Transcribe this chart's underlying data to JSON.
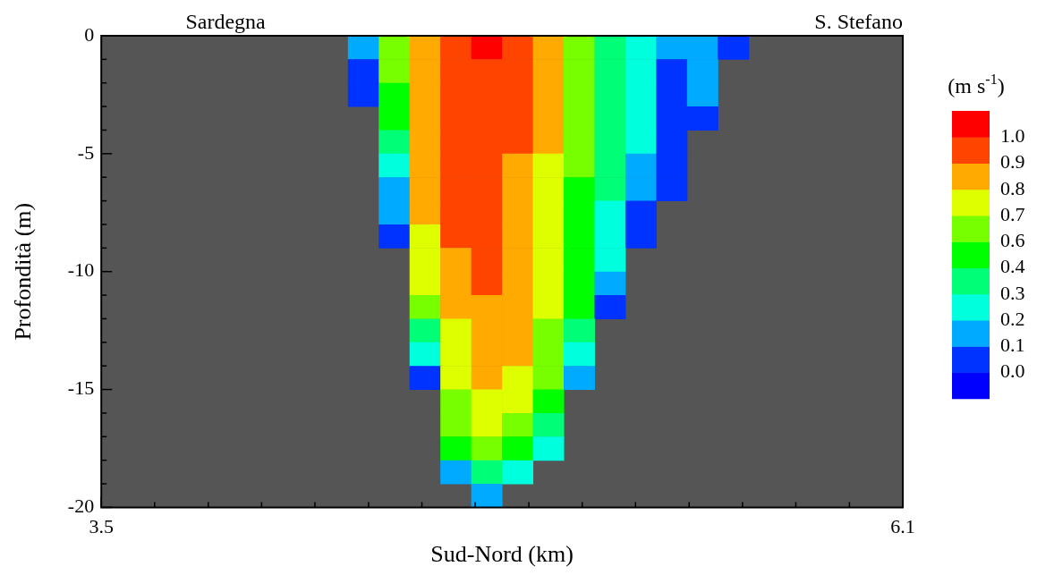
{
  "chart_data": {
    "type": "heatmap",
    "xlabel": "Sud-Nord (km)",
    "ylabel": "Profondità (m)",
    "clabel": "(m s$^{-1}$)",
    "annotations": [
      "Sardegna",
      "S. Stefano"
    ],
    "xlim": [
      3.5,
      6.1
    ],
    "xticks": [
      3.5,
      {
        "value": 3.673,
        "label": null
      },
      {
        "value": 3.847,
        "label": null
      },
      {
        "value": 4.02,
        "label": null
      },
      {
        "value": 4.193,
        "label": null
      },
      {
        "value": 4.367,
        "label": null
      },
      {
        "value": 4.54,
        "label": null
      },
      {
        "value": 4.713,
        "label": null
      },
      {
        "value": 4.887,
        "label": null
      },
      {
        "value": 5.06,
        "label": null
      },
      {
        "value": 5.233,
        "label": null
      },
      {
        "value": 5.407,
        "label": null
      },
      {
        "value": 5.58,
        "label": null
      },
      {
        "value": 5.753,
        "label": null
      },
      {
        "value": 5.927,
        "label": null
      },
      6.1
    ],
    "ylim": [
      -20,
      0
    ],
    "yticks": [
      -20,
      {
        "value": -19,
        "label": null
      },
      {
        "value": -18,
        "label": null
      },
      {
        "value": -17,
        "label": null
      },
      {
        "value": -16,
        "label": null
      },
      -15,
      {
        "value": -14,
        "label": null
      },
      {
        "value": -13,
        "label": null
      },
      {
        "value": -12,
        "label": null
      },
      {
        "value": -11,
        "label": null
      },
      -10,
      {
        "value": -9,
        "label": null
      },
      {
        "value": -8,
        "label": null
      },
      {
        "value": -7,
        "label": null
      },
      {
        "value": -6,
        "label": null
      },
      -5,
      {
        "value": -4,
        "label": null
      },
      {
        "value": -3,
        "label": null
      },
      {
        "value": -2,
        "label": null
      },
      {
        "value": -1,
        "label": null
      },
      0
    ],
    "clim": [
      -0.11,
      1.1
    ],
    "cticks": [
      {
        "value": 0,
        "label": "0.0"
      },
      {
        "value": 0.11,
        "label": "0.1"
      },
      {
        "value": 0.22,
        "label": "0.2"
      },
      {
        "value": 0.33,
        "label": "0.3"
      },
      {
        "value": 0.44,
        "label": "0.4"
      },
      {
        "value": 0.55,
        "label": "0.6"
      },
      {
        "value": 0.66,
        "label": "0.7"
      },
      {
        "value": 0.77,
        "label": "0.8"
      },
      {
        "value": 0.88,
        "label": "0.9"
      },
      {
        "value": 0.99,
        "label": "1.0"
      }
    ],
    "cells": [
      [
        null,
        null,
        null,
        null,
        null,
        null,
        null,
        null,
        0.165,
        0.605,
        0.825,
        0.935,
        1.045,
        0.935,
        0.825,
        0.605,
        0.385,
        0.275,
        0.165,
        0.165,
        0.055,
        null,
        null,
        null,
        null,
        null
      ],
      [
        null,
        null,
        null,
        null,
        null,
        null,
        null,
        null,
        0.055,
        0.605,
        0.825,
        0.935,
        0.935,
        0.935,
        0.825,
        0.605,
        0.385,
        0.275,
        0.055,
        0.165,
        null,
        null,
        null,
        null,
        null,
        null
      ],
      [
        null,
        null,
        null,
        null,
        null,
        null,
        null,
        null,
        0.055,
        0.495,
        0.825,
        0.935,
        0.935,
        0.935,
        0.825,
        0.605,
        0.385,
        0.275,
        0.055,
        0.165,
        null,
        null,
        null,
        null,
        null,
        null
      ],
      [
        null,
        null,
        null,
        null,
        null,
        null,
        null,
        null,
        null,
        0.495,
        0.825,
        0.935,
        0.935,
        0.935,
        0.825,
        0.605,
        0.385,
        0.275,
        0.055,
        0.055,
        null,
        null,
        null,
        null,
        null,
        null
      ],
      [
        null,
        null,
        null,
        null,
        null,
        null,
        null,
        null,
        null,
        0.385,
        0.825,
        0.935,
        0.935,
        0.935,
        0.825,
        0.605,
        0.385,
        0.275,
        0.055,
        null,
        null,
        null,
        null,
        null,
        null,
        null
      ],
      [
        null,
        null,
        null,
        null,
        null,
        null,
        null,
        null,
        null,
        0.275,
        0.825,
        0.935,
        0.935,
        0.825,
        0.715,
        0.605,
        0.385,
        0.165,
        0.055,
        null,
        null,
        null,
        null,
        null,
        null,
        null
      ],
      [
        null,
        null,
        null,
        null,
        null,
        null,
        null,
        null,
        null,
        0.165,
        0.825,
        0.935,
        0.935,
        0.825,
        0.715,
        0.495,
        0.385,
        0.165,
        0.055,
        null,
        null,
        null,
        null,
        null,
        null,
        null
      ],
      [
        null,
        null,
        null,
        null,
        null,
        null,
        null,
        null,
        null,
        0.165,
        0.825,
        0.935,
        0.935,
        0.825,
        0.715,
        0.495,
        0.275,
        0.055,
        null,
        null,
        null,
        null,
        null,
        null,
        null,
        null
      ],
      [
        null,
        null,
        null,
        null,
        null,
        null,
        null,
        null,
        null,
        0.055,
        0.715,
        0.935,
        0.935,
        0.825,
        0.715,
        0.495,
        0.275,
        0.055,
        null,
        null,
        null,
        null,
        null,
        null,
        null,
        null
      ],
      [
        null,
        null,
        null,
        null,
        null,
        null,
        null,
        null,
        null,
        null,
        0.715,
        0.825,
        0.935,
        0.825,
        0.715,
        0.495,
        0.275,
        null,
        null,
        null,
        null,
        null,
        null,
        null,
        null,
        null
      ],
      [
        null,
        null,
        null,
        null,
        null,
        null,
        null,
        null,
        null,
        null,
        0.715,
        0.825,
        0.935,
        0.825,
        0.715,
        0.495,
        0.165,
        null,
        null,
        null,
        null,
        null,
        null,
        null,
        null,
        null
      ],
      [
        null,
        null,
        null,
        null,
        null,
        null,
        null,
        null,
        null,
        null,
        0.605,
        0.825,
        0.825,
        0.825,
        0.715,
        0.495,
        0.055,
        null,
        null,
        null,
        null,
        null,
        null,
        null,
        null,
        null
      ],
      [
        null,
        null,
        null,
        null,
        null,
        null,
        null,
        null,
        null,
        null,
        0.385,
        0.715,
        0.825,
        0.825,
        0.605,
        0.385,
        null,
        null,
        null,
        null,
        null,
        null,
        null,
        null,
        null,
        null
      ],
      [
        null,
        null,
        null,
        null,
        null,
        null,
        null,
        null,
        null,
        null,
        0.275,
        0.715,
        0.825,
        0.825,
        0.605,
        0.275,
        null,
        null,
        null,
        null,
        null,
        null,
        null,
        null,
        null,
        null
      ],
      [
        null,
        null,
        null,
        null,
        null,
        null,
        null,
        null,
        null,
        null,
        0.055,
        0.715,
        0.825,
        0.715,
        0.605,
        0.165,
        null,
        null,
        null,
        null,
        null,
        null,
        null,
        null,
        null,
        null
      ],
      [
        null,
        null,
        null,
        null,
        null,
        null,
        null,
        null,
        null,
        null,
        null,
        0.605,
        0.715,
        0.715,
        0.495,
        null,
        null,
        null,
        null,
        null,
        null,
        null,
        null,
        null,
        null,
        null
      ],
      [
        null,
        null,
        null,
        null,
        null,
        null,
        null,
        null,
        null,
        null,
        null,
        0.605,
        0.715,
        0.605,
        0.385,
        null,
        null,
        null,
        null,
        null,
        null,
        null,
        null,
        null,
        null,
        null
      ],
      [
        null,
        null,
        null,
        null,
        null,
        null,
        null,
        null,
        null,
        null,
        null,
        0.495,
        0.605,
        0.495,
        0.275,
        null,
        null,
        null,
        null,
        null,
        null,
        null,
        null,
        null,
        null,
        null
      ],
      [
        null,
        null,
        null,
        null,
        null,
        null,
        null,
        null,
        null,
        null,
        null,
        0.165,
        0.385,
        0.275,
        null,
        null,
        null,
        null,
        null,
        null,
        null,
        null,
        null,
        null,
        null,
        null
      ],
      [
        null,
        null,
        null,
        null,
        null,
        null,
        null,
        null,
        null,
        null,
        null,
        null,
        0.165,
        null,
        null,
        null,
        null,
        null,
        null,
        null,
        null,
        null,
        null,
        null,
        null,
        null
      ]
    ]
  }
}
